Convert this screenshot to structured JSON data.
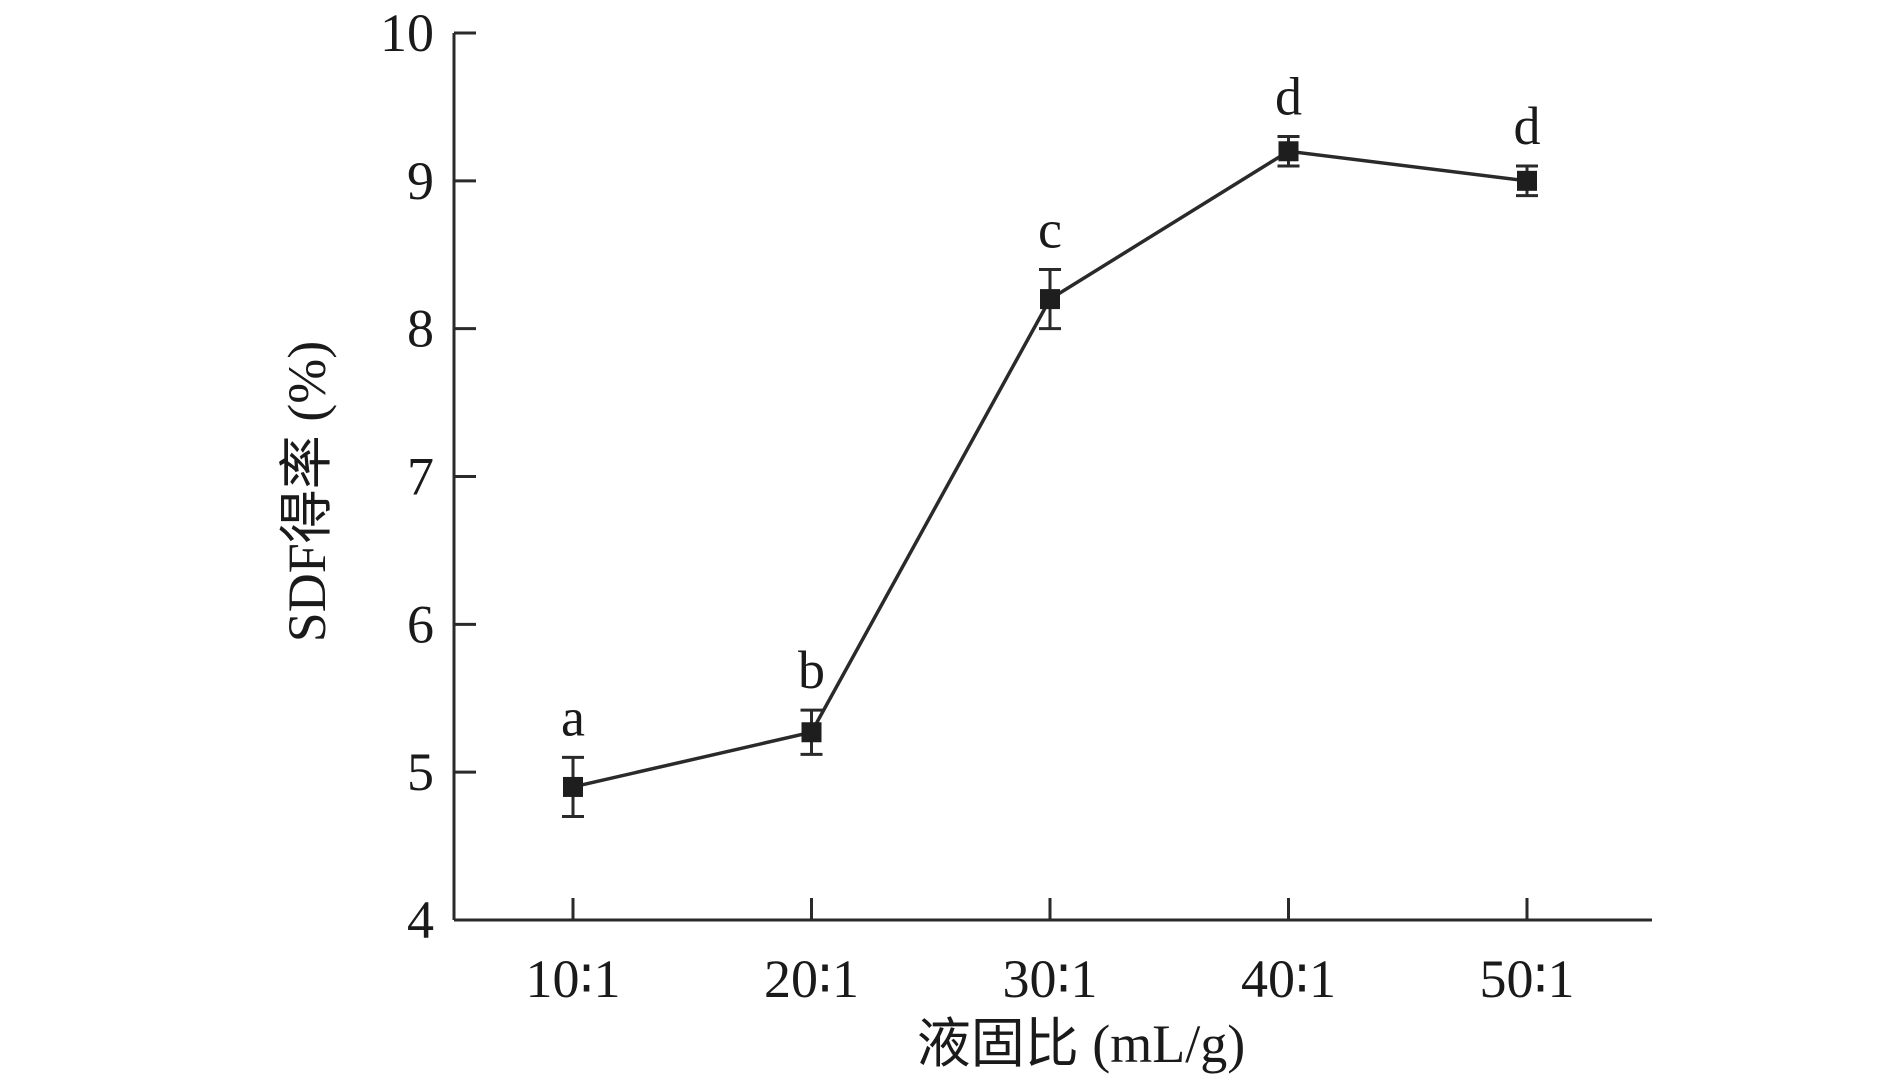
{
  "chart_data": {
    "type": "line",
    "title": "",
    "xlabel": "液固比 (mL/g)",
    "ylabel": "SDF得率 (%)",
    "categories": [
      "10∶1",
      "20∶1",
      "30∶1",
      "40∶1",
      "50∶1"
    ],
    "ylim": [
      4,
      10
    ],
    "yticks": [
      4,
      5,
      6,
      7,
      8,
      9,
      10
    ],
    "grid": false,
    "legend": "none",
    "series": [
      {
        "values": [
          4.9,
          5.27,
          8.2,
          9.2,
          9.0
        ],
        "errors": [
          0.2,
          0.15,
          0.2,
          0.1,
          0.1
        ],
        "significance": [
          "a",
          "b",
          "c",
          "d",
          "d"
        ],
        "marker": "square",
        "color": "#1e1e1e"
      }
    ]
  }
}
